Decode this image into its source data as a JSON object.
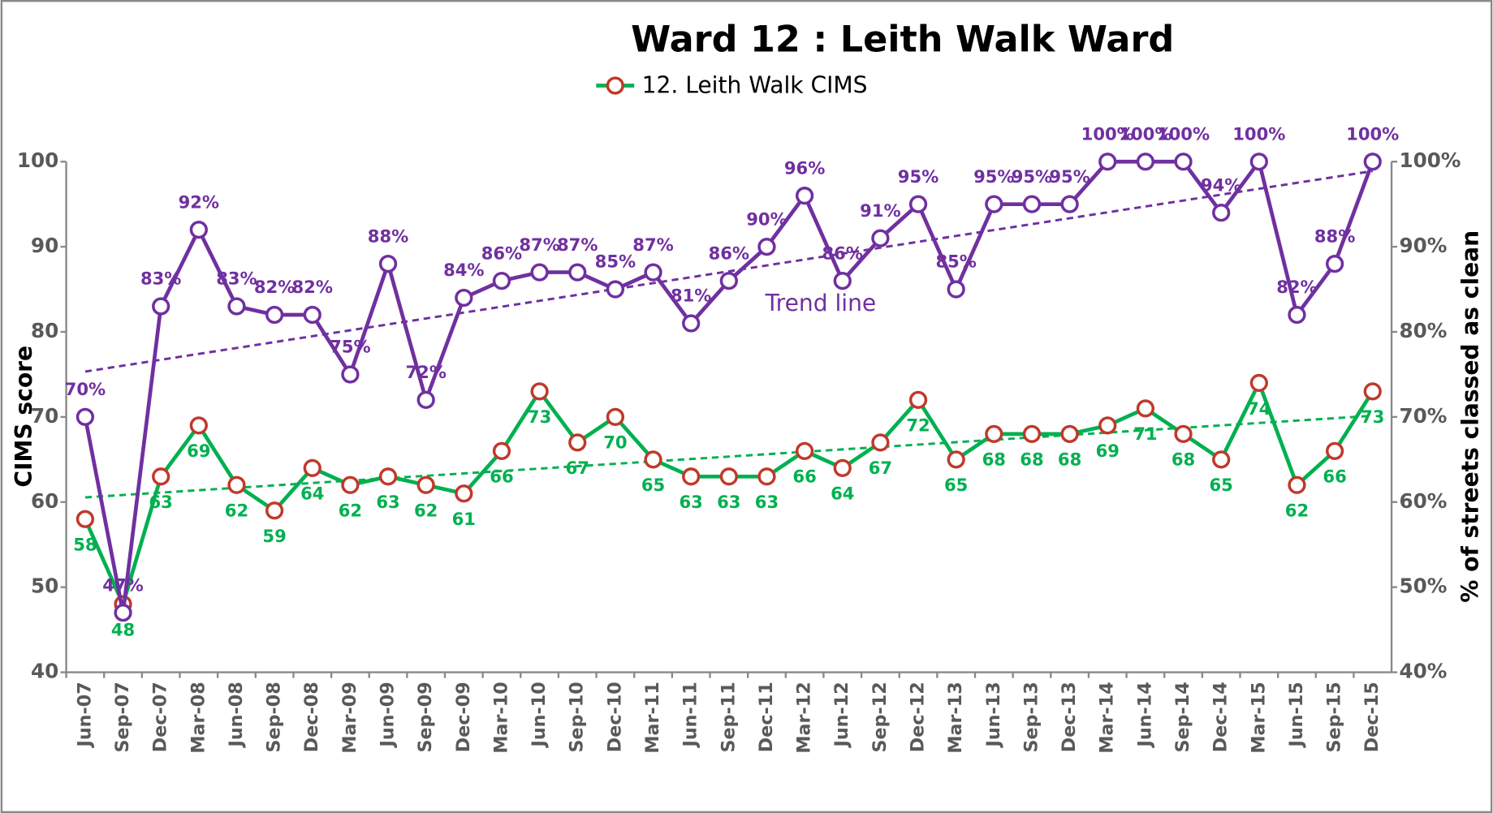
{
  "chart_data": {
    "type": "line",
    "title": "Ward 12 : Leith Walk Ward",
    "y_label": "CIMS score",
    "y2_label": "% of streets classed as clean",
    "annotation": "Trend line",
    "categories": [
      "Jun-07",
      "Sep-07",
      "Dec-07",
      "Mar-08",
      "Jun-08",
      "Sep-08",
      "Dec-08",
      "Mar-09",
      "Jun-09",
      "Sep-09",
      "Dec-09",
      "Mar-10",
      "Jun-10",
      "Sep-10",
      "Dec-10",
      "Mar-11",
      "Jun-11",
      "Sep-11",
      "Dec-11",
      "Mar-12",
      "Jun-12",
      "Sep-12",
      "Dec-12",
      "Mar-13",
      "Jun-13",
      "Sep-13",
      "Dec-13",
      "Mar-14",
      "Jun-14",
      "Sep-14",
      "Dec-14",
      "Mar-15",
      "Jun-15",
      "Sep-15",
      "Dec-15"
    ],
    "series": [
      {
        "name": "12. Leith Walk CIMS",
        "color": "#00b050",
        "marker_color": "#c0392b",
        "values": [
          58,
          48,
          63,
          69,
          62,
          59,
          64,
          62,
          63,
          62,
          61,
          66,
          73,
          67,
          70,
          65,
          63,
          63,
          63,
          66,
          64,
          67,
          72,
          65,
          68,
          68,
          68,
          69,
          71,
          68,
          65,
          74,
          62,
          66,
          73
        ]
      },
      {
        "color": "#7030a0",
        "marker_color": "#7030a0",
        "axis": "y2",
        "values": [
          70,
          47,
          83,
          92,
          83,
          82,
          82,
          75,
          88,
          72,
          84,
          86,
          87,
          87,
          85,
          87,
          81,
          86,
          90,
          96,
          86,
          91,
          95,
          85,
          95,
          95,
          95,
          100,
          100,
          100,
          94,
          100,
          82,
          88,
          100
        ],
        "value_labels": [
          "70%",
          "47%",
          "83%",
          "92%",
          "83%",
          "82%",
          "82%",
          "75%",
          "88%",
          "72%",
          "84%",
          "86%",
          "87%",
          "87%",
          "85%",
          "87%",
          "81%",
          "86%",
          "90%",
          "96%",
          "86%",
          "91%",
          "95%",
          "85%",
          "95%",
          "95%",
          "95%",
          "100%",
          "100%",
          "100%",
          "94%",
          "100%",
          "82%",
          "88%",
          "100%"
        ]
      }
    ],
    "ylim": [
      40,
      100
    ],
    "yticks": [
      40,
      50,
      60,
      70,
      80,
      90,
      100
    ],
    "y2lim": [
      40,
      100
    ],
    "y2ticks": [
      {
        "value": 40,
        "label": "40%"
      },
      {
        "value": 50,
        "label": "50%"
      },
      {
        "value": 60,
        "label": "60%"
      },
      {
        "value": 70,
        "label": "70%"
      },
      {
        "value": 80,
        "label": "80%"
      },
      {
        "value": 90,
        "label": "90%"
      },
      {
        "value": 100,
        "label": "100%"
      }
    ],
    "trend_lines": true,
    "grid": false,
    "legend": "top"
  }
}
